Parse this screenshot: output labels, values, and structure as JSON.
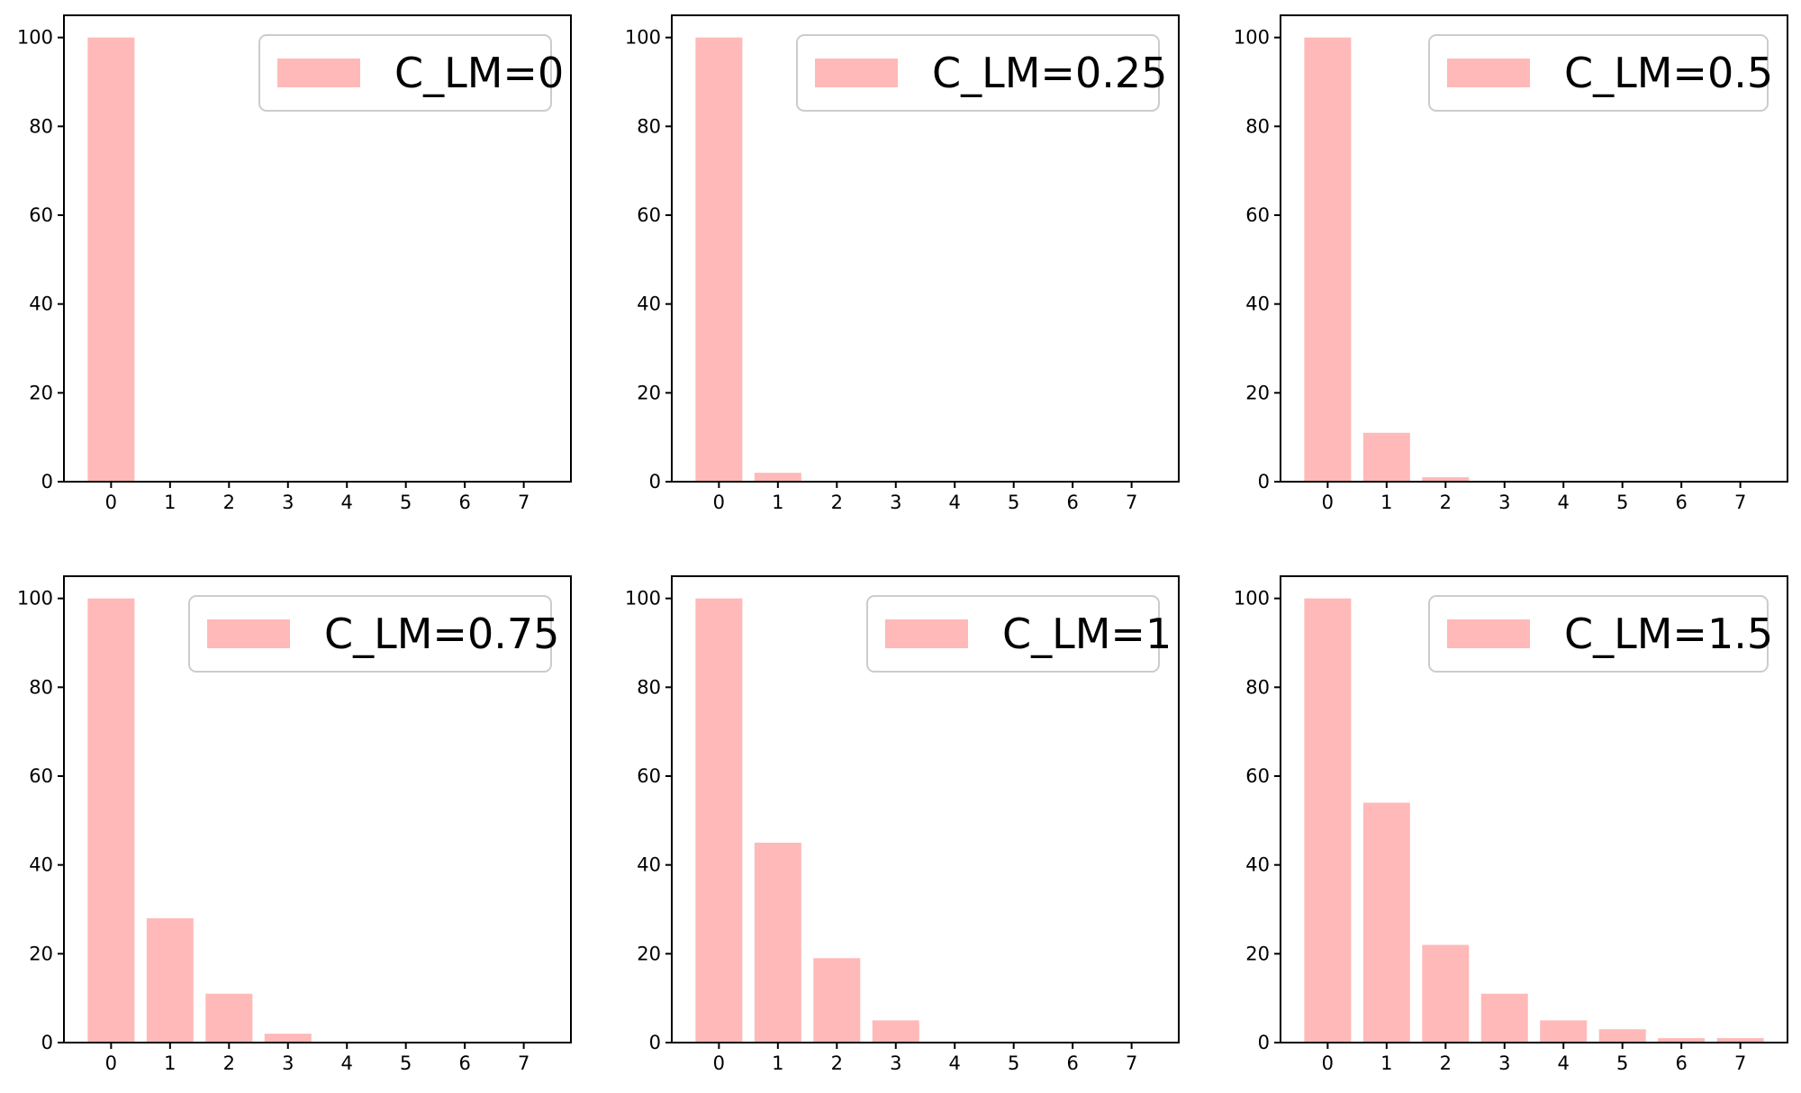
{
  "chart_data": [
    {
      "type": "bar",
      "categories": [
        "0",
        "1",
        "2",
        "3",
        "4",
        "5",
        "6",
        "7"
      ],
      "series": [
        {
          "name": "C_LM=0",
          "values": [
            100,
            0,
            0,
            0,
            0,
            0,
            0,
            0
          ]
        }
      ],
      "ylim": [
        0,
        105
      ],
      "yticks": [
        "0",
        "20",
        "40",
        "60",
        "80",
        "100"
      ],
      "legend_position": "top-right",
      "bar_color": "#ffb9b8",
      "grid": false
    },
    {
      "type": "bar",
      "categories": [
        "0",
        "1",
        "2",
        "3",
        "4",
        "5",
        "6",
        "7"
      ],
      "series": [
        {
          "name": "C_LM=0.25",
          "values": [
            100,
            2,
            0,
            0,
            0,
            0,
            0,
            0
          ]
        }
      ],
      "ylim": [
        0,
        105
      ],
      "yticks": [
        "0",
        "20",
        "40",
        "60",
        "80",
        "100"
      ],
      "legend_position": "top-right",
      "bar_color": "#ffb9b8",
      "grid": false
    },
    {
      "type": "bar",
      "categories": [
        "0",
        "1",
        "2",
        "3",
        "4",
        "5",
        "6",
        "7"
      ],
      "series": [
        {
          "name": "C_LM=0.5",
          "values": [
            100,
            11,
            1,
            0,
            0,
            0,
            0,
            0
          ]
        }
      ],
      "ylim": [
        0,
        105
      ],
      "yticks": [
        "0",
        "20",
        "40",
        "60",
        "80",
        "100"
      ],
      "legend_position": "top-right",
      "bar_color": "#ffb9b8",
      "grid": false
    },
    {
      "type": "bar",
      "categories": [
        "0",
        "1",
        "2",
        "3",
        "4",
        "5",
        "6",
        "7"
      ],
      "series": [
        {
          "name": "C_LM=0.75",
          "values": [
            100,
            28,
            11,
            2,
            0,
            0,
            0,
            0
          ]
        }
      ],
      "ylim": [
        0,
        105
      ],
      "yticks": [
        "0",
        "20",
        "40",
        "60",
        "80",
        "100"
      ],
      "legend_position": "top-right",
      "bar_color": "#ffb9b8",
      "grid": false
    },
    {
      "type": "bar",
      "categories": [
        "0",
        "1",
        "2",
        "3",
        "4",
        "5",
        "6",
        "7"
      ],
      "series": [
        {
          "name": "C_LM=1",
          "values": [
            100,
            45,
            19,
            5,
            0,
            0,
            0,
            0
          ]
        }
      ],
      "ylim": [
        0,
        105
      ],
      "yticks": [
        "0",
        "20",
        "40",
        "60",
        "80",
        "100"
      ],
      "legend_position": "top-right",
      "bar_color": "#ffb9b8",
      "grid": false
    },
    {
      "type": "bar",
      "categories": [
        "0",
        "1",
        "2",
        "3",
        "4",
        "5",
        "6",
        "7"
      ],
      "series": [
        {
          "name": "C_LM=1.5",
          "values": [
            100,
            54,
            22,
            11,
            5,
            3,
            1,
            1
          ]
        }
      ],
      "ylim": [
        0,
        105
      ],
      "yticks": [
        "0",
        "20",
        "40",
        "60",
        "80",
        "100"
      ],
      "legend_position": "top-right",
      "bar_color": "#ffb9b8",
      "grid": false
    }
  ]
}
